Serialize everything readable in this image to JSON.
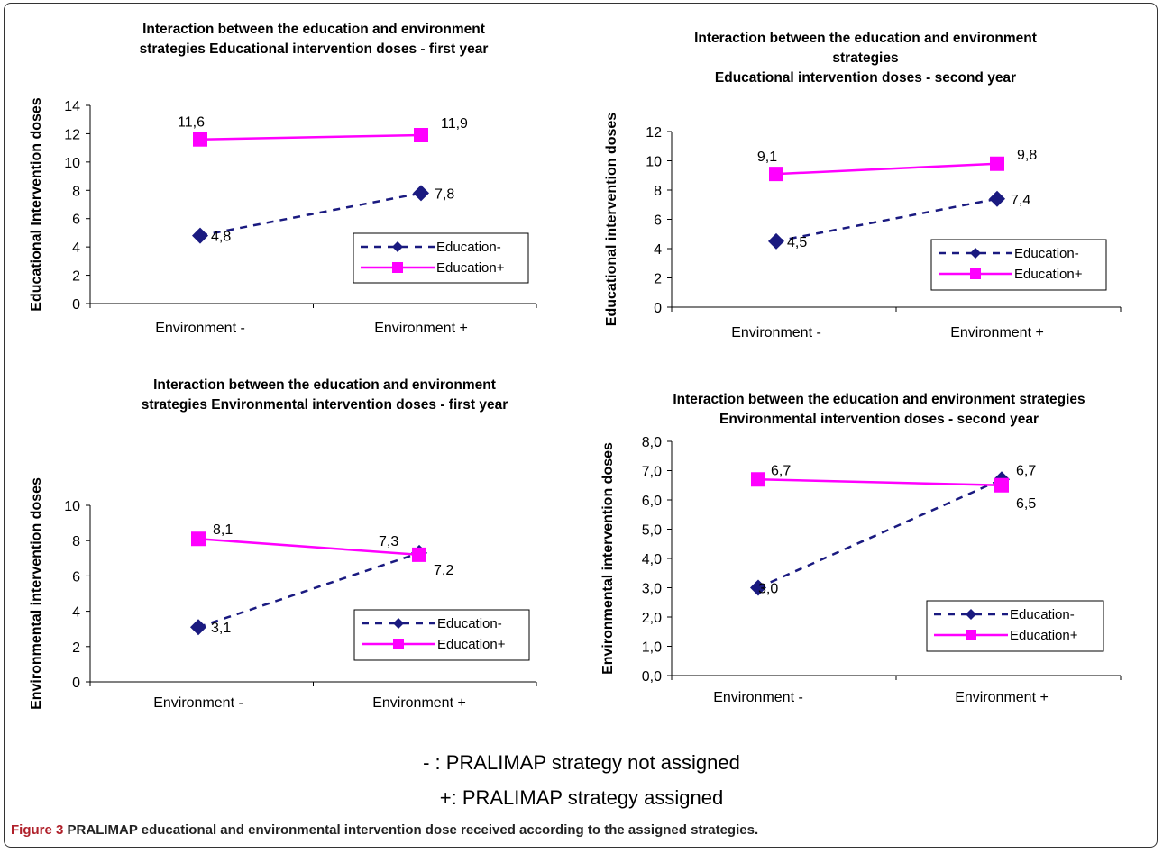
{
  "chart_data": [
    {
      "type": "line",
      "title_lines": [
        "Interaction between the  education and environment",
        "strategies Educational intervention doses - first year"
      ],
      "ylabel": "Educational Intervention doses",
      "xlabel": "",
      "categories": [
        "Environment -",
        "Environment +"
      ],
      "ylim": [
        0,
        14
      ],
      "yticks": [
        "0",
        "2",
        "4",
        "6",
        "8",
        "10",
        "12",
        "14"
      ],
      "series": [
        {
          "name": "Education-",
          "values": [
            4.8,
            7.8
          ],
          "labels": [
            "4,8",
            "7,8"
          ],
          "color": "#1a1a80",
          "dash": true,
          "marker": "diamond"
        },
        {
          "name": "Education+",
          "values": [
            11.6,
            11.9
          ],
          "labels": [
            "11,6",
            "11,9"
          ],
          "color": "#ff00ff",
          "dash": false,
          "marker": "square"
        }
      ],
      "legend": "bottom-right"
    },
    {
      "type": "line",
      "title_lines": [
        "Interaction between the education and environment",
        "strategies",
        "Educational intervention doses - second year"
      ],
      "ylabel": "Educational intervention doses",
      "xlabel": "",
      "categories": [
        "Environment -",
        "Environment +"
      ],
      "ylim": [
        0,
        12
      ],
      "yticks": [
        "0",
        "2",
        "4",
        "6",
        "8",
        "10",
        "12"
      ],
      "series": [
        {
          "name": "Education-",
          "values": [
            4.5,
            7.4
          ],
          "labels": [
            "4,5",
            "7,4"
          ],
          "color": "#1a1a80",
          "dash": true,
          "marker": "diamond"
        },
        {
          "name": "Education+",
          "values": [
            9.1,
            9.8
          ],
          "labels": [
            "9,1",
            "9,8"
          ],
          "color": "#ff00ff",
          "dash": false,
          "marker": "square"
        }
      ],
      "legend": "bottom-right"
    },
    {
      "type": "line",
      "title_lines": [
        "Interaction between the education and environment",
        "strategies  Environmental intervention doses - first year"
      ],
      "ylabel": "Environmental intervention doses",
      "xlabel": "",
      "categories": [
        "Environment -",
        "Environment +"
      ],
      "ylim": [
        0,
        10
      ],
      "yticks": [
        "0",
        "2",
        "4",
        "6",
        "8",
        "10"
      ],
      "series": [
        {
          "name": "Education-",
          "values": [
            3.1,
            7.3
          ],
          "labels": [
            "3,1",
            "7,3"
          ],
          "color": "#1a1a80",
          "dash": true,
          "marker": "diamond"
        },
        {
          "name": "Education+",
          "values": [
            8.1,
            7.2
          ],
          "labels": [
            "8,1",
            "7,2"
          ],
          "color": "#ff00ff",
          "dash": false,
          "marker": "square"
        }
      ],
      "legend": "bottom-right"
    },
    {
      "type": "line",
      "title_lines": [
        "Interaction between the education and environment strategies",
        "Environmental intervention doses - second year"
      ],
      "ylabel": "Environmental intervention doses",
      "xlabel": "",
      "categories": [
        "Environment -",
        "Environment +"
      ],
      "ylim": [
        0,
        8
      ],
      "yticks": [
        "0,0",
        "1,0",
        "2,0",
        "3,0",
        "4,0",
        "5,0",
        "6,0",
        "7,0",
        "8,0"
      ],
      "series": [
        {
          "name": "Education-",
          "values": [
            3.0,
            6.7
          ],
          "labels": [
            "3,0",
            "6,7"
          ],
          "color": "#1a1a80",
          "dash": true,
          "marker": "diamond"
        },
        {
          "name": "Education+",
          "values": [
            6.7,
            6.5
          ],
          "labels": [
            "6,7",
            "6,5"
          ],
          "color": "#ff00ff",
          "dash": false,
          "marker": "square"
        }
      ],
      "legend": "bottom-right"
    }
  ],
  "notes": {
    "not_assigned": "- : PRALIMAP strategy not assigned",
    "assigned": "+: PRALIMAP strategy assigned"
  },
  "caption": {
    "label": "Figure 3",
    "text": "PRALIMAP educational and environmental intervention dose received according to the assigned strategies."
  }
}
